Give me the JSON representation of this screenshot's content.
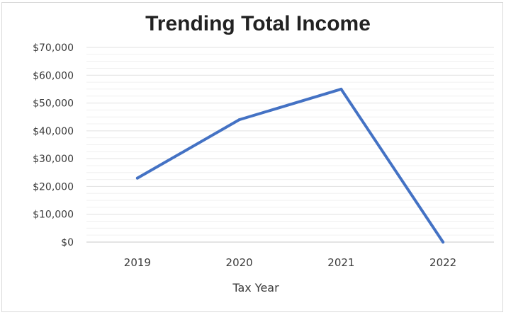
{
  "chart_data": {
    "type": "line",
    "title": "Trending Total Income",
    "xlabel": "Tax Year",
    "ylabel": "",
    "categories": [
      "2019",
      "2020",
      "2021",
      "2022"
    ],
    "series": [
      {
        "values": [
          23000,
          44000,
          55000,
          0
        ]
      }
    ],
    "ylim": [
      0,
      70000
    ],
    "y_ticks": [
      0,
      10000,
      20000,
      30000,
      40000,
      50000,
      60000,
      70000
    ],
    "y_tick_labels": [
      "$0",
      "$10,000",
      "$20,000",
      "$30,000",
      "$40,000",
      "$50,000",
      "$60,000",
      "$70,000"
    ],
    "line_color": "#4472c4",
    "grid": true,
    "legend": "none"
  }
}
